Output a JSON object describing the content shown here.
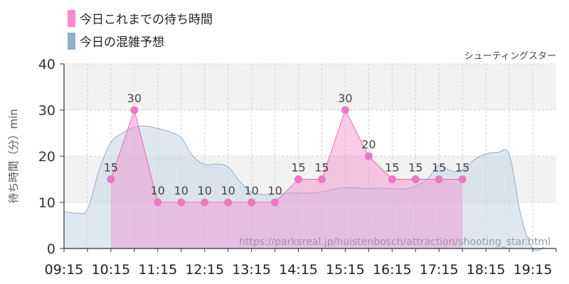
{
  "chart_data": {
    "type": "area",
    "legend": [
      {
        "label": "今日これまでの待ち時間",
        "color": "#ff88cc"
      },
      {
        "label": "今日の混雑予想",
        "color": "#8fb0cf"
      }
    ],
    "attraction_name": "シューティングスター",
    "ylabel": "待ち時間（分）min",
    "ylim": [
      0,
      40
    ],
    "yticks": [
      "0",
      "10",
      "20",
      "30",
      "40"
    ],
    "xticks": [
      "09:15",
      "10:15",
      "11:15",
      "12:15",
      "13:15",
      "14:15",
      "15:15",
      "16:15",
      "17:15",
      "18:15",
      "19:15"
    ],
    "grid": true,
    "series": [
      {
        "key": "actual",
        "color": "#ee66b8",
        "x": [
          "10:15",
          "10:45",
          "11:15",
          "11:45",
          "12:15",
          "12:45",
          "13:15",
          "13:45",
          "14:15",
          "14:45",
          "15:15",
          "15:45",
          "16:15",
          "16:45",
          "17:15",
          "17:45"
        ],
        "values": [
          15,
          30,
          10,
          10,
          10,
          10,
          10,
          10,
          15,
          15,
          30,
          20,
          15,
          15,
          15,
          15
        ],
        "labels": [
          "15",
          "30",
          "10",
          "10",
          "10",
          "10",
          "10",
          "10",
          "15",
          "15",
          "30",
          "20",
          "15",
          "15",
          "15",
          "15"
        ]
      },
      {
        "key": "forecast",
        "color": "#8fb0cf",
        "x": [
          "09:15",
          "09:30",
          "09:45",
          "10:00",
          "10:15",
          "10:30",
          "10:45",
          "11:00",
          "11:15",
          "11:30",
          "11:45",
          "12:00",
          "12:15",
          "12:30",
          "12:45",
          "13:00",
          "13:15",
          "13:30",
          "13:45",
          "14:00",
          "14:15",
          "14:30",
          "14:45",
          "15:00",
          "15:15",
          "15:30",
          "15:45",
          "16:00",
          "16:15",
          "16:30",
          "16:45",
          "17:00",
          "17:15",
          "17:30",
          "17:45",
          "18:00",
          "18:15",
          "18:30",
          "18:45",
          "19:00",
          "19:15",
          "19:30"
        ],
        "values": [
          8,
          7.7,
          8.5,
          17,
          23,
          25,
          26.3,
          26.5,
          26,
          25.3,
          24,
          20,
          18.2,
          18.3,
          17.7,
          14.5,
          12.2,
          11.7,
          11.8,
          12,
          12,
          12,
          12.3,
          12.8,
          13.2,
          13.1,
          13,
          13.1,
          13,
          12.9,
          13.5,
          15,
          18,
          16.8,
          17,
          19.2,
          20.5,
          20.8,
          20.3,
          7,
          0,
          0.3
        ]
      }
    ],
    "watermark": "https://parksreal.jp/huistenbosch/attraction/shooting_star.html"
  }
}
